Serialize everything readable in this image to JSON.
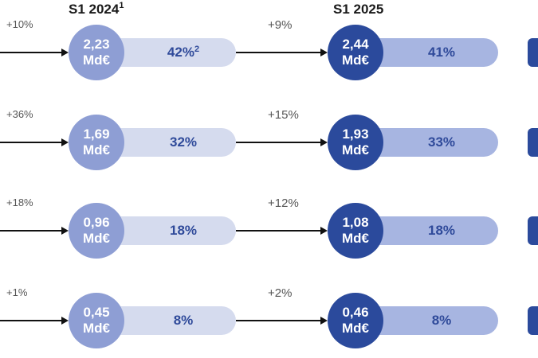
{
  "headers": {
    "period1": "S1 2024",
    "period1_note": "1",
    "period2": "S1 2025"
  },
  "rows": [
    {
      "growth_in": "+10%",
      "v1": "2,23",
      "unit1": "Md€",
      "share1": "42%",
      "share1_note": "2",
      "growth_mid": "+9%",
      "v2": "2,44",
      "unit2": "Md€",
      "share2": "41%"
    },
    {
      "growth_in": "+36%",
      "v1": "1,69",
      "unit1": "Md€",
      "share1": "32%",
      "share1_note": "",
      "growth_mid": "+15%",
      "v2": "1,93",
      "unit2": "Md€",
      "share2": "33%"
    },
    {
      "growth_in": "+18%",
      "v1": "0,96",
      "unit1": "Md€",
      "share1": "18%",
      "share1_note": "",
      "growth_mid": "+12%",
      "v2": "1,08",
      "unit2": "Md€",
      "share2": "18%"
    },
    {
      "growth_in": "+1%",
      "v1": "0,45",
      "unit1": "Md€",
      "share1": "8%",
      "share1_note": "",
      "growth_mid": "+2%",
      "v2": "0,46",
      "unit2": "Md€",
      "share2": "8%"
    }
  ],
  "colors": {
    "circle_2024": "#8e9ed4",
    "circle_2025": "#2b4a9c",
    "pill_2024": "#d5dbee",
    "pill_2025": "#a7b5e1",
    "percent_text": "#2f4a9a"
  }
}
